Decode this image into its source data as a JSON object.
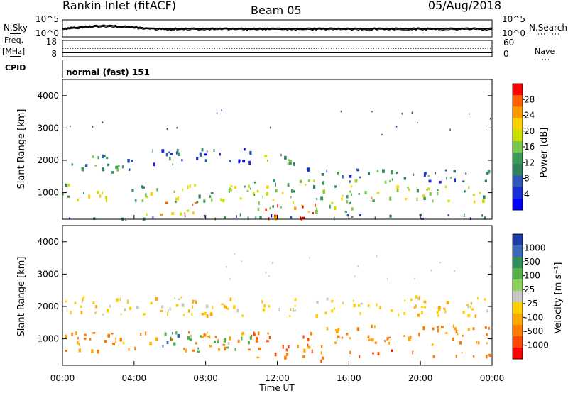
{
  "header": {
    "station": "Rankin Inlet (fitACF)",
    "beam": "Beam 05",
    "date": "05/Aug/2018"
  },
  "top_panels": {
    "nsky_label": "N.Sky",
    "nsky_ticks": [
      "10^5",
      "10^0"
    ],
    "nsearch_label": "N.Search",
    "nsearch_ticks": [
      "10^5",
      "10^0"
    ],
    "freq_label_1": "Freq.",
    "freq_label_2": "[MHz]",
    "freq_ticks": [
      "18",
      "8"
    ],
    "nave_label": "Nave",
    "nave_ticks": [
      "60",
      "0"
    ],
    "cpid_label": "CPID",
    "cpid_value": "normal (fast) 151"
  },
  "chart_data": [
    {
      "type": "heatmap",
      "name": "power",
      "ylabel": "Slant Range [km]",
      "ylim": [
        180,
        4500
      ],
      "yticks": [
        "4000",
        "3000",
        "2000",
        "1000"
      ],
      "colorbar_label": "Power [dB]",
      "colorbar_ticks": [
        "28",
        "24",
        "20",
        "16",
        "12",
        "8",
        "4"
      ],
      "colorbar_colors": [
        "#ff0000",
        "#ff6000",
        "#ff9900",
        "#ffd000",
        "#cce000",
        "#7bc84a",
        "#3a9a56",
        "#2d7f5e",
        "#2e56b8",
        "#1a2ed8",
        "#0000ff"
      ],
      "scatter_bands": [
        {
          "t0": 0.0,
          "t1": 4.5,
          "r0": 1620,
          "r1": 2150,
          "v": 9
        },
        {
          "t0": 4.5,
          "t1": 10.5,
          "r0": 1800,
          "r1": 2350,
          "v": 6
        },
        {
          "t0": 10.5,
          "t1": 13.2,
          "r0": 1800,
          "r1": 2200,
          "v": 14
        },
        {
          "t0": 13.2,
          "t1": 24.0,
          "r0": 1300,
          "r1": 1750,
          "v": 9
        },
        {
          "t0": 0.0,
          "t1": 10.5,
          "r0": 700,
          "r1": 1250,
          "v": 15
        },
        {
          "t0": 10.5,
          "t1": 16.5,
          "r0": 400,
          "r1": 1400,
          "v": 15
        },
        {
          "t0": 16.5,
          "t1": 24.0,
          "r0": 700,
          "r1": 1200,
          "v": 16
        },
        {
          "t0": 4.5,
          "t1": 7.5,
          "r0": 300,
          "r1": 700,
          "v": 24
        },
        {
          "t0": 11.3,
          "t1": 14.5,
          "r0": 180,
          "r1": 650,
          "v": 26
        },
        {
          "t0": 0.0,
          "t1": 24.0,
          "r0": 180,
          "r1": 330,
          "v": 6
        }
      ]
    },
    {
      "type": "heatmap",
      "name": "velocity",
      "xlabel": "Time UT",
      "ylabel": "Slant Range [km]",
      "ylim": [
        180,
        4500
      ],
      "yticks": [
        "4000",
        "3000",
        "2000",
        "1000"
      ],
      "colorbar_label": "Velocity [m s⁻¹]",
      "colorbar_ticks": [
        "1000",
        "500",
        "100",
        "25",
        "-25",
        "-100",
        "-500",
        "-1000"
      ],
      "colorbar_colors": [
        "#1e3ca8",
        "#3a67b7",
        "#2f8f57",
        "#55b04a",
        "#8ed35a",
        "#c8c8c0",
        "#ffd000",
        "#ffaa00",
        "#ff7d00",
        "#ff4800",
        "#ff0000"
      ],
      "scatter_bands": [
        {
          "t0": 0.0,
          "t1": 24.0,
          "r0": 1700,
          "r1": 2300,
          "v": 0
        },
        {
          "t0": 0.0,
          "t1": 10.5,
          "r0": 600,
          "r1": 1200,
          "v": -120
        },
        {
          "t0": 10.5,
          "t1": 14.5,
          "r0": 300,
          "r1": 1200,
          "v": -300
        },
        {
          "t0": 14.5,
          "t1": 24.0,
          "r0": 800,
          "r1": 1400,
          "v": -150
        },
        {
          "t0": 4.5,
          "t1": 6.5,
          "r0": 700,
          "r1": 1200,
          "v": 600
        },
        {
          "t0": 6.5,
          "t1": 10.5,
          "r0": 600,
          "r1": 1100,
          "v": 150
        },
        {
          "t0": 16.0,
          "t1": 24.0,
          "r0": 450,
          "r1": 650,
          "v": -300
        }
      ],
      "xticks": [
        "00:00",
        "04:00",
        "08:00",
        "12:00",
        "16:00",
        "20:00",
        "00:00"
      ]
    }
  ]
}
